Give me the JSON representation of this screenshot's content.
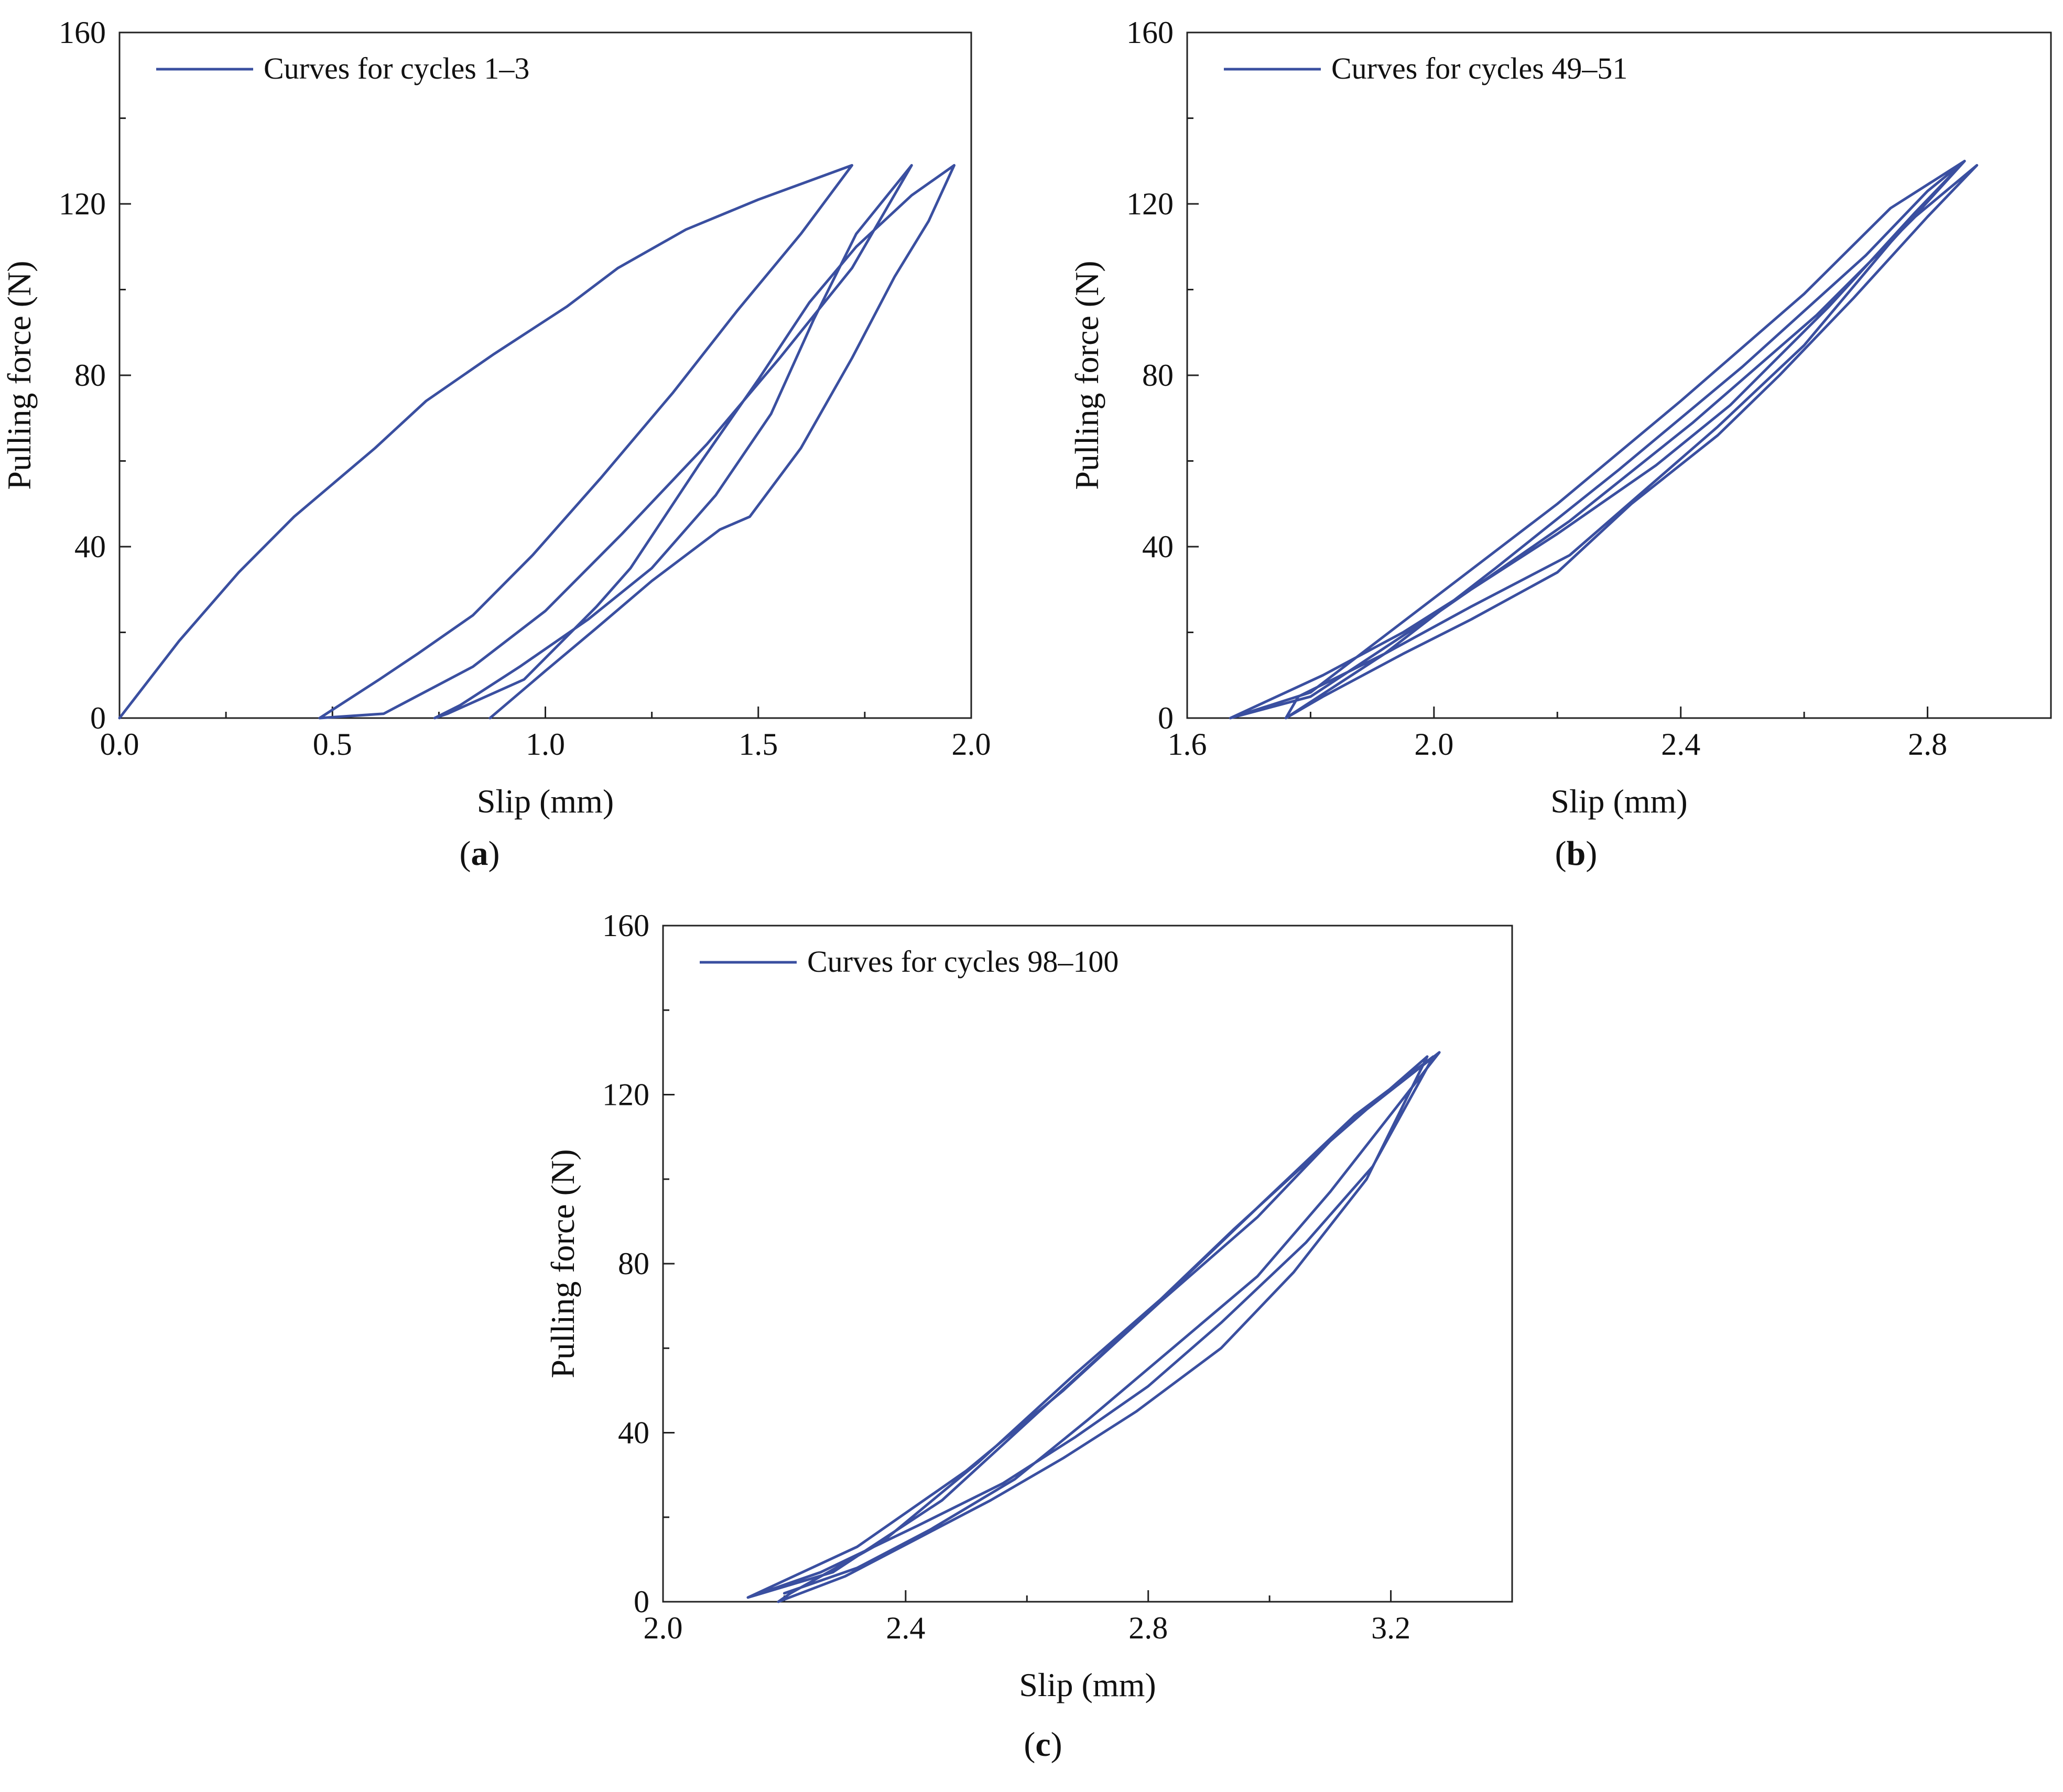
{
  "chart_data": [
    {
      "id": "a",
      "type": "line",
      "panel_label": "a",
      "title": "",
      "xlabel": "Slip (mm)",
      "ylabel": "Pulling force (N)",
      "xlim": [
        0.0,
        2.0
      ],
      "ylim": [
        0,
        160
      ],
      "xticks": [
        0.0,
        0.5,
        1.0,
        1.5,
        2.0
      ],
      "xtick_labels": [
        "0.0",
        "0.5",
        "1.0",
        "1.5",
        "2.0"
      ],
      "yticks": [
        0,
        40,
        80,
        120,
        160
      ],
      "ytick_labels": [
        "0",
        "40",
        "80",
        "120",
        "160"
      ],
      "grid": false,
      "legend": {
        "placement": "top-left",
        "entries": [
          "Curves for cycles 1–3"
        ]
      },
      "color": "#3a4fa0",
      "series": [
        {
          "name": "Curves for cycles 1–3",
          "x": [
            0.0,
            0.14,
            0.28,
            0.41,
            0.6,
            0.72,
            0.88,
            1.05,
            1.17,
            1.33,
            1.5,
            1.72,
            1.6,
            1.45,
            1.3,
            1.13,
            0.97,
            0.83,
            0.7,
            0.61,
            0.47,
            0.62,
            0.83,
            1.0,
            1.18,
            1.38,
            1.55,
            1.72,
            1.86,
            1.73,
            1.63,
            1.53,
            1.4,
            1.25,
            1.1,
            0.94,
            0.8,
            0.74,
            0.77,
            0.95,
            1.12,
            1.2,
            1.36,
            1.5,
            1.62,
            1.73,
            1.86,
            1.96,
            1.9,
            1.82,
            1.72,
            1.6,
            1.48,
            1.41,
            1.25,
            1.12,
            1.0,
            0.87
          ],
          "y": [
            0,
            18,
            34,
            47,
            63,
            74,
            85,
            96,
            105,
            114,
            121,
            129,
            113,
            95,
            76,
            56,
            38,
            24,
            15,
            9,
            0,
            1,
            12,
            25,
            43,
            64,
            84,
            105,
            129,
            113,
            93,
            71,
            52,
            35,
            23,
            12,
            3,
            0,
            1,
            9,
            26,
            35,
            59,
            79,
            97,
            110,
            122,
            129,
            116,
            103,
            84,
            63,
            47,
            44,
            32,
            21,
            11,
            0
          ]
        }
      ]
    },
    {
      "id": "b",
      "type": "line",
      "panel_label": "b",
      "title": "",
      "xlabel": "Slip (mm)",
      "ylabel": "Pulling force (N)",
      "xlim": [
        1.6,
        3.0
      ],
      "ylim": [
        0,
        160
      ],
      "xticks": [
        1.6,
        2.0,
        2.4,
        2.8
      ],
      "xtick_labels": [
        "1.6",
        "2.0",
        "2.4",
        "2.8"
      ],
      "yticks": [
        0,
        40,
        80,
        120,
        160
      ],
      "ytick_labels": [
        "0",
        "40",
        "80",
        "120",
        "160"
      ],
      "grid": false,
      "legend": {
        "placement": "top-left",
        "entries": [
          "Curves for cycles 49–51"
        ]
      },
      "color": "#3a4fa0",
      "series": [
        {
          "name": "Curves for cycles 49–51",
          "x": [
            1.67,
            1.8,
            2.0,
            2.2,
            2.4,
            2.6,
            2.74,
            2.86,
            2.74,
            2.6,
            2.46,
            2.34,
            2.22,
            2.06,
            1.92,
            1.78,
            1.76,
            1.92,
            2.1,
            2.3,
            2.5,
            2.7,
            2.8,
            2.86,
            2.78,
            2.64,
            2.48,
            2.36,
            2.2,
            2.06,
            1.95,
            1.82,
            1.67,
            1.8,
            2.0,
            2.22,
            2.42,
            2.62,
            2.78,
            2.88,
            2.8,
            2.68,
            2.56,
            2.46,
            2.32,
            2.2,
            2.06,
            1.95,
            1.82,
            1.76
          ],
          "y": [
            0,
            6,
            28,
            50,
            74,
            99,
            119,
            130,
            111,
            87,
            68,
            53,
            38,
            26,
            15,
            5,
            0,
            15,
            35,
            58,
            82,
            108,
            123,
            130,
            118,
            96,
            73,
            59,
            43,
            30,
            20,
            10,
            0,
            5,
            24,
            46,
            69,
            94,
            117,
            129,
            117,
            98,
            80,
            66,
            50,
            34,
            23,
            15,
            5,
            0
          ]
        }
      ]
    },
    {
      "id": "c",
      "type": "line",
      "panel_label": "c",
      "title": "",
      "xlabel": "Slip (mm)",
      "ylabel": "Pulling force (N)",
      "xlim": [
        2.0,
        3.4
      ],
      "ylim": [
        0,
        160
      ],
      "xticks": [
        2.0,
        2.4,
        2.8,
        3.2
      ],
      "xtick_labels": [
        "2.0",
        "2.4",
        "2.8",
        "3.2"
      ],
      "yticks": [
        0,
        40,
        80,
        120,
        160
      ],
      "ytick_labels": [
        "0",
        "40",
        "80",
        "120",
        "160"
      ],
      "grid": false,
      "legend": {
        "placement": "top-left",
        "entries": [
          "Curves for cycles 98–100"
        ]
      },
      "color": "#3a4fa0",
      "series": [
        {
          "name": "Curves for cycles 98–100",
          "x": [
            2.14,
            2.28,
            2.46,
            2.62,
            2.78,
            2.94,
            3.1,
            3.26,
            3.16,
            3.04,
            2.92,
            2.78,
            2.66,
            2.54,
            2.42,
            2.3,
            2.19,
            2.21,
            2.36,
            2.52,
            2.68,
            2.84,
            3.0,
            3.14,
            3.27,
            3.17,
            3.06,
            2.92,
            2.8,
            2.68,
            2.56,
            2.42,
            2.26,
            2.14,
            2.32,
            2.5,
            2.66,
            2.82,
            2.98,
            3.12,
            3.28,
            3.1,
            2.98,
            2.84,
            2.7,
            2.58,
            2.44,
            2.32,
            2.2
          ],
          "y": [
            1,
            7,
            24,
            45,
            66,
            88,
            109,
            129,
            100,
            78,
            60,
            45,
            34,
            24,
            15,
            6,
            0,
            2,
            14,
            33,
            54,
            74,
            96,
            115,
            129,
            103,
            85,
            66,
            51,
            39,
            28,
            18,
            7,
            1,
            13,
            31,
            50,
            71,
            91,
            112,
            130,
            97,
            77,
            60,
            43,
            29,
            17,
            8,
            2
          ]
        }
      ]
    }
  ]
}
